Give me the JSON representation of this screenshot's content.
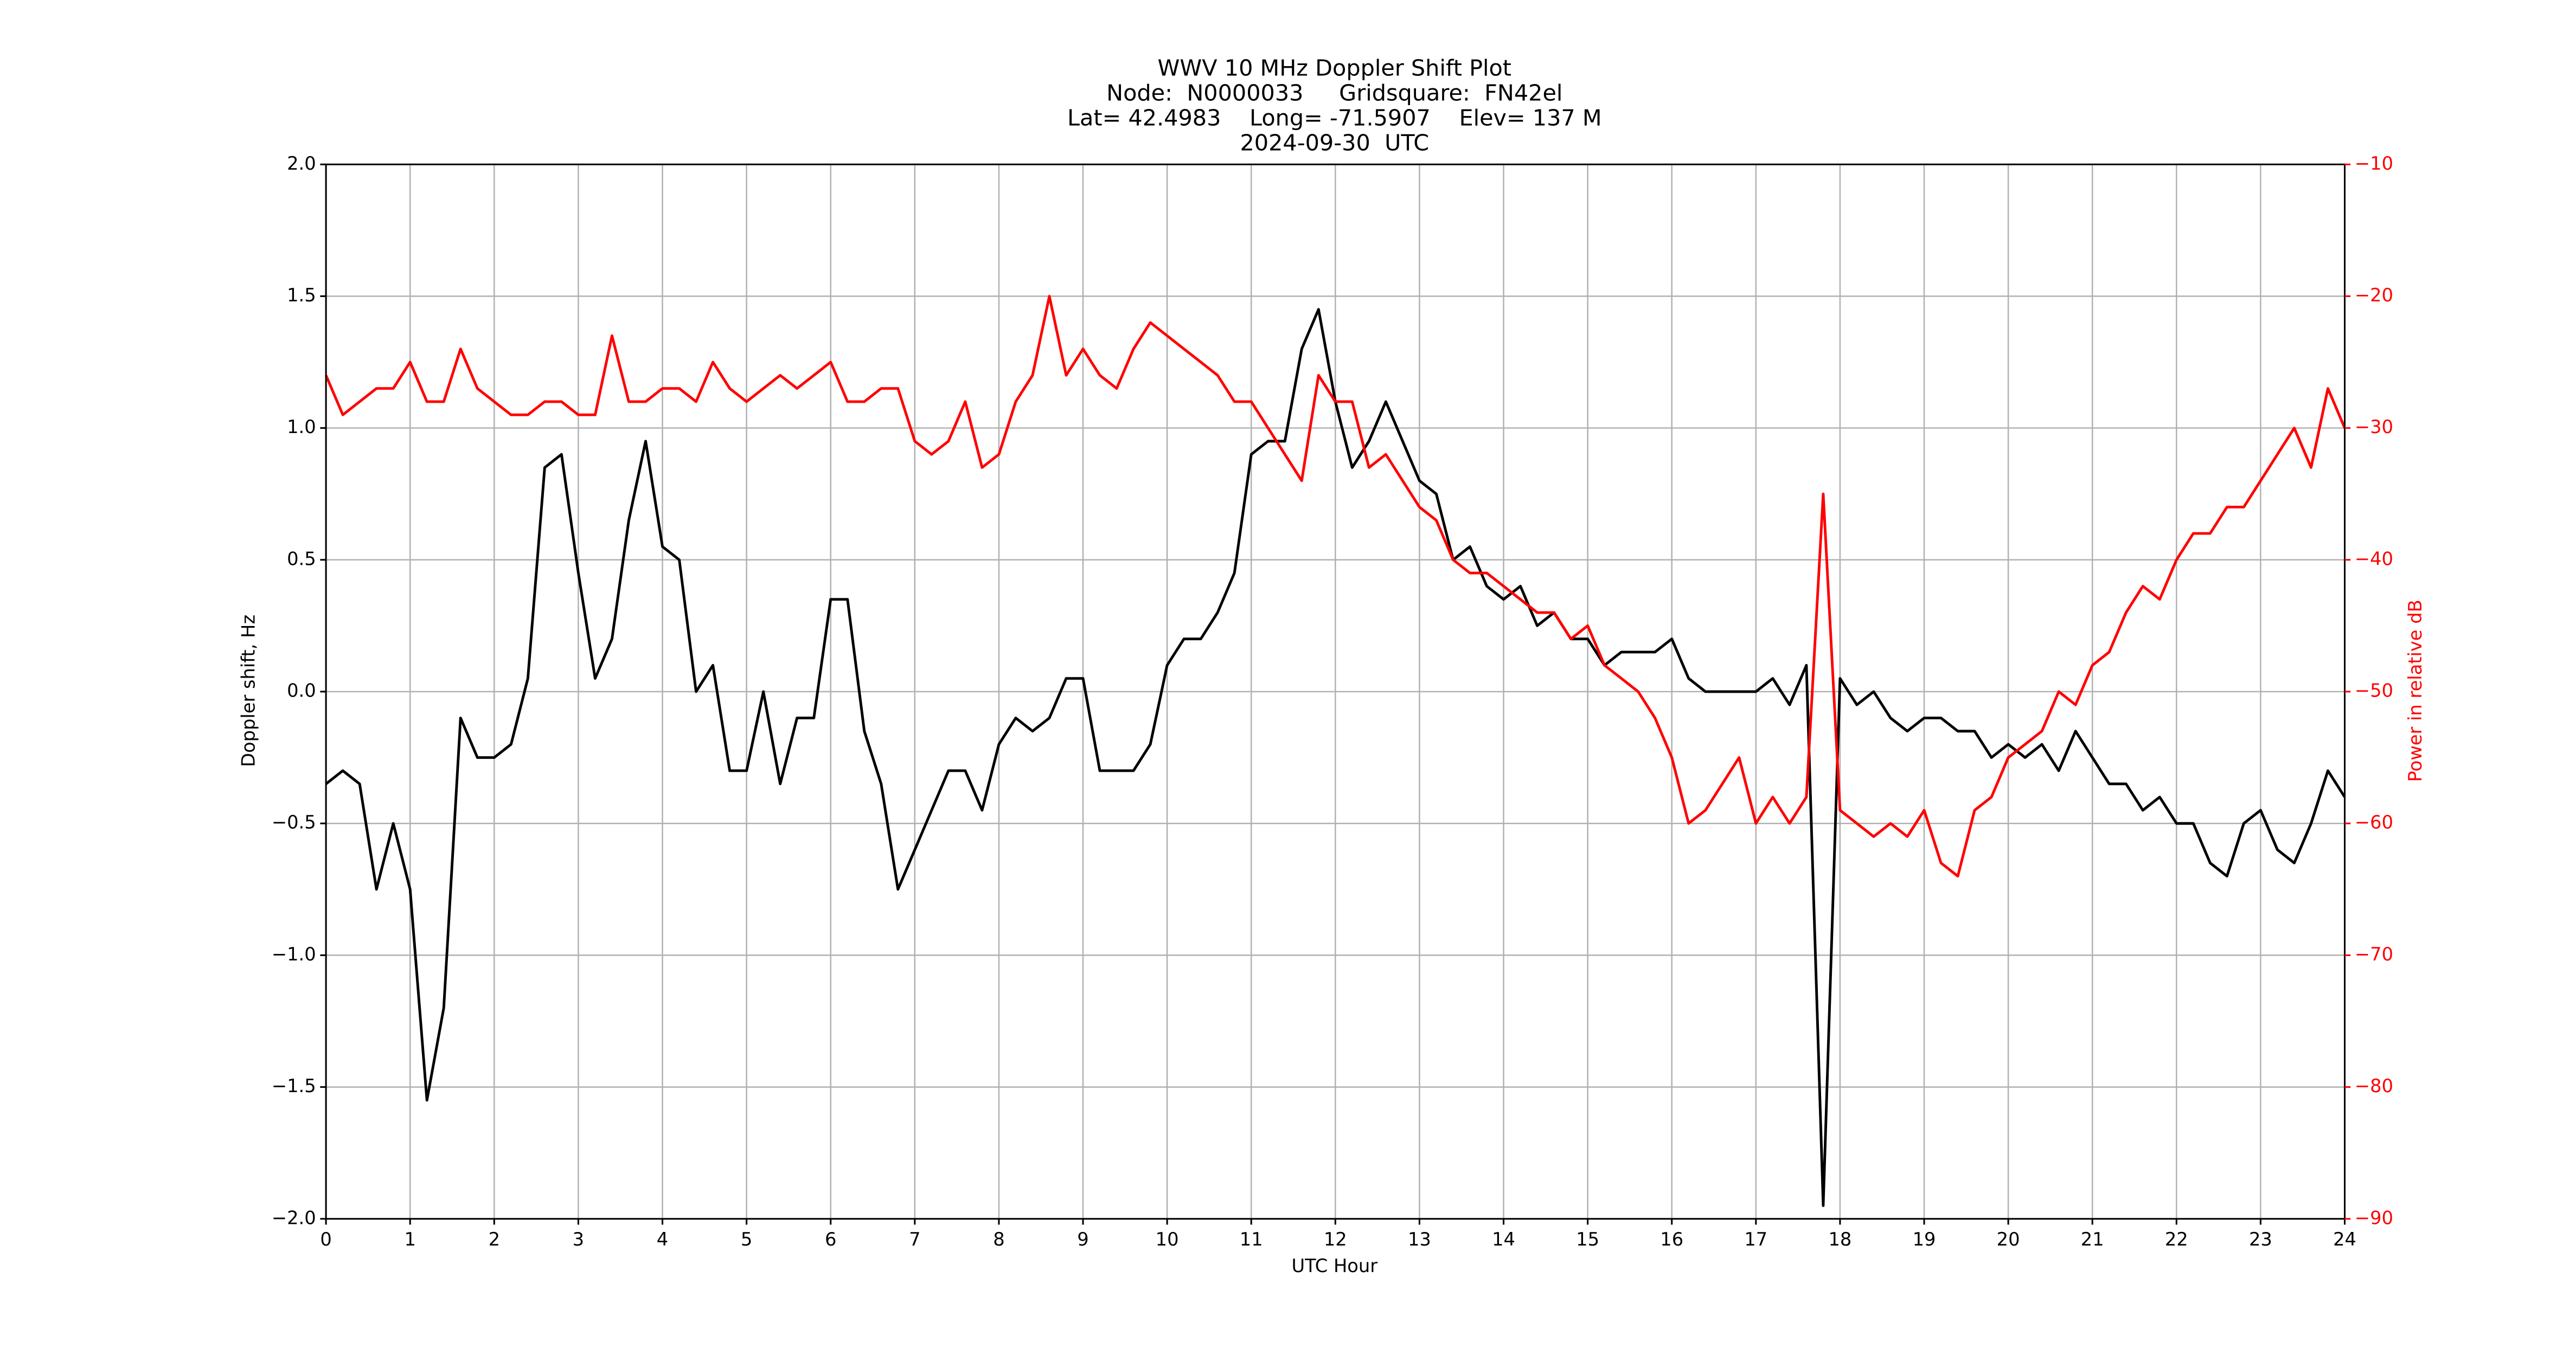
{
  "chart_data": {
    "type": "line",
    "title_lines": [
      "WWV 10 MHz Doppler Shift Plot",
      "Node:  N0000033     Gridsquare:  FN42el",
      "Lat= 42.4983    Long= -71.5907    Elev= 137 M",
      "2024-09-30  UTC"
    ],
    "xlabel": "UTC Hour",
    "ylabel": "Doppler shift, Hz",
    "y2label": "Power in relative dB",
    "grid": true,
    "xlim": [
      0,
      24
    ],
    "xticks": [
      0,
      1,
      2,
      3,
      4,
      5,
      6,
      7,
      8,
      9,
      10,
      11,
      12,
      13,
      14,
      15,
      16,
      17,
      18,
      19,
      20,
      21,
      22,
      23,
      24
    ],
    "ylim": [
      -2,
      2
    ],
    "yticks": [
      {
        "value": -2,
        "label": "−2.0"
      },
      {
        "value": -1.5,
        "label": "−1.5"
      },
      {
        "value": -1,
        "label": "−1.0"
      },
      {
        "value": -0.5,
        "label": "−0.5"
      },
      {
        "value": 0,
        "label": "0.0"
      },
      {
        "value": 0.5,
        "label": "0.5"
      },
      {
        "value": 1,
        "label": "1.0"
      },
      {
        "value": 1.5,
        "label": "1.5"
      },
      {
        "value": 2,
        "label": "2.0"
      }
    ],
    "y2lim": [
      -90,
      -10
    ],
    "y2ticks": [
      {
        "value": -90,
        "label": "−90"
      },
      {
        "value": -80,
        "label": "−80"
      },
      {
        "value": -70,
        "label": "−70"
      },
      {
        "value": -60,
        "label": "−60"
      },
      {
        "value": -50,
        "label": "−50"
      },
      {
        "value": -40,
        "label": "−40"
      },
      {
        "value": -30,
        "label": "−30"
      },
      {
        "value": -20,
        "label": "−20"
      },
      {
        "value": -10,
        "label": "−10"
      }
    ],
    "x": [
      0,
      0.2,
      0.4,
      0.6,
      0.8,
      1,
      1.2,
      1.4,
      1.6,
      1.8,
      2,
      2.2,
      2.4,
      2.6,
      2.8,
      3,
      3.2,
      3.4,
      3.6,
      3.8,
      4,
      4.2,
      4.4,
      4.6,
      4.8,
      5,
      5.2,
      5.4,
      5.6,
      5.8,
      6,
      6.2,
      6.4,
      6.6,
      6.8,
      7,
      7.2,
      7.4,
      7.6,
      7.8,
      8,
      8.2,
      8.4,
      8.6,
      8.8,
      9,
      9.2,
      9.4,
      9.6,
      9.8,
      10,
      10.2,
      10.4,
      10.6,
      10.8,
      11,
      11.2,
      11.4,
      11.6,
      11.8,
      12,
      12.2,
      12.4,
      12.6,
      12.8,
      13,
      13.2,
      13.4,
      13.6,
      13.8,
      14,
      14.2,
      14.4,
      14.6,
      14.8,
      15,
      15.2,
      15.4,
      15.6,
      15.8,
      16,
      16.2,
      16.4,
      16.6,
      16.8,
      17,
      17.2,
      17.4,
      17.6,
      17.8,
      18,
      18.2,
      18.4,
      18.6,
      18.8,
      19,
      19.2,
      19.4,
      19.6,
      19.8,
      20,
      20.2,
      20.4,
      20.6,
      20.8,
      21,
      21.2,
      21.4,
      21.6,
      21.8,
      22,
      22.2,
      22.4,
      22.6,
      22.8,
      23,
      23.2,
      23.4,
      23.6,
      23.8,
      24
    ],
    "series": [
      {
        "color": "#000000",
        "values": [
          -0.35,
          -0.3,
          -0.35,
          -0.75,
          -0.5,
          -0.75,
          -1.55,
          -1.2,
          -0.1,
          -0.25,
          -0.25,
          -0.2,
          0.05,
          0.85,
          0.9,
          0.45,
          0.05,
          0.2,
          0.65,
          0.95,
          0.55,
          0.5,
          0,
          0.1,
          -0.3,
          -0.3,
          0,
          -0.35,
          -0.1,
          -0.1,
          0.35,
          0.35,
          -0.15,
          -0.35,
          -0.75,
          -0.6,
          -0.45,
          -0.3,
          -0.3,
          -0.45,
          -0.2,
          -0.1,
          -0.15,
          -0.1,
          0.05,
          0.05,
          -0.3,
          -0.3,
          -0.3,
          -0.2,
          0.1,
          0.2,
          0.2,
          0.3,
          0.45,
          0.9,
          0.95,
          0.95,
          1.3,
          1.45,
          1.1,
          0.85,
          0.95,
          1.1,
          0.95,
          0.8,
          0.75,
          0.5,
          0.55,
          0.4,
          0.35,
          0.4,
          0.25,
          0.3,
          0.2,
          0.2,
          0.1,
          0.15,
          0.15,
          0.15,
          0.2,
          0.05,
          0,
          0,
          0,
          0,
          0.05,
          -0.05,
          0.1,
          -1.95,
          0.05,
          -0.05,
          0,
          -0.1,
          -0.15,
          -0.1,
          -0.1,
          -0.15,
          -0.15,
          -0.25,
          -0.2,
          -0.25,
          -0.2,
          -0.3,
          -0.15,
          -0.25,
          -0.35,
          -0.35,
          -0.45,
          -0.4,
          -0.5,
          -0.5,
          -0.65,
          -0.7,
          -0.5,
          -0.45,
          -0.6,
          -0.65,
          -0.5,
          -0.3,
          -0.4
        ]
      },
      {
        "color": "#ff0000",
        "axis": "y2",
        "values": [
          -26,
          -29,
          -28,
          -27,
          -27,
          -25,
          -28,
          -28,
          -24,
          -27,
          -28,
          -29,
          -29,
          -28,
          -28,
          -29,
          -29,
          -23,
          -28,
          -28,
          -27,
          -27,
          -28,
          -25,
          -27,
          -28,
          -27,
          -26,
          -27,
          -26,
          -25,
          -28,
          -28,
          -27,
          -27,
          -31,
          -32,
          -31,
          -28,
          -33,
          -32,
          -28,
          -26,
          -20,
          -26,
          -24,
          -26,
          -27,
          -24,
          -22,
          -23,
          -24,
          -25,
          -26,
          -28,
          -28,
          -30,
          -32,
          -34,
          -26,
          -28,
          -28,
          -33,
          -32,
          -34,
          -36,
          -37,
          -40,
          -41,
          -41,
          -42,
          -43,
          -44,
          -44,
          -46,
          -45,
          -48,
          -49,
          -50,
          -52,
          -55,
          -60,
          -59,
          -57,
          -55,
          -60,
          -58,
          -60,
          -58,
          -35,
          -59,
          -60,
          -61,
          -60,
          -61,
          -59,
          -63,
          -64,
          -59,
          -58,
          -55,
          -54,
          -53,
          -50,
          -51,
          -48,
          -47,
          -44,
          -42,
          -43,
          -40,
          -38,
          -38,
          -36,
          -36,
          -34,
          -32,
          -30,
          -33,
          -27,
          -30
        ]
      }
    ]
  }
}
